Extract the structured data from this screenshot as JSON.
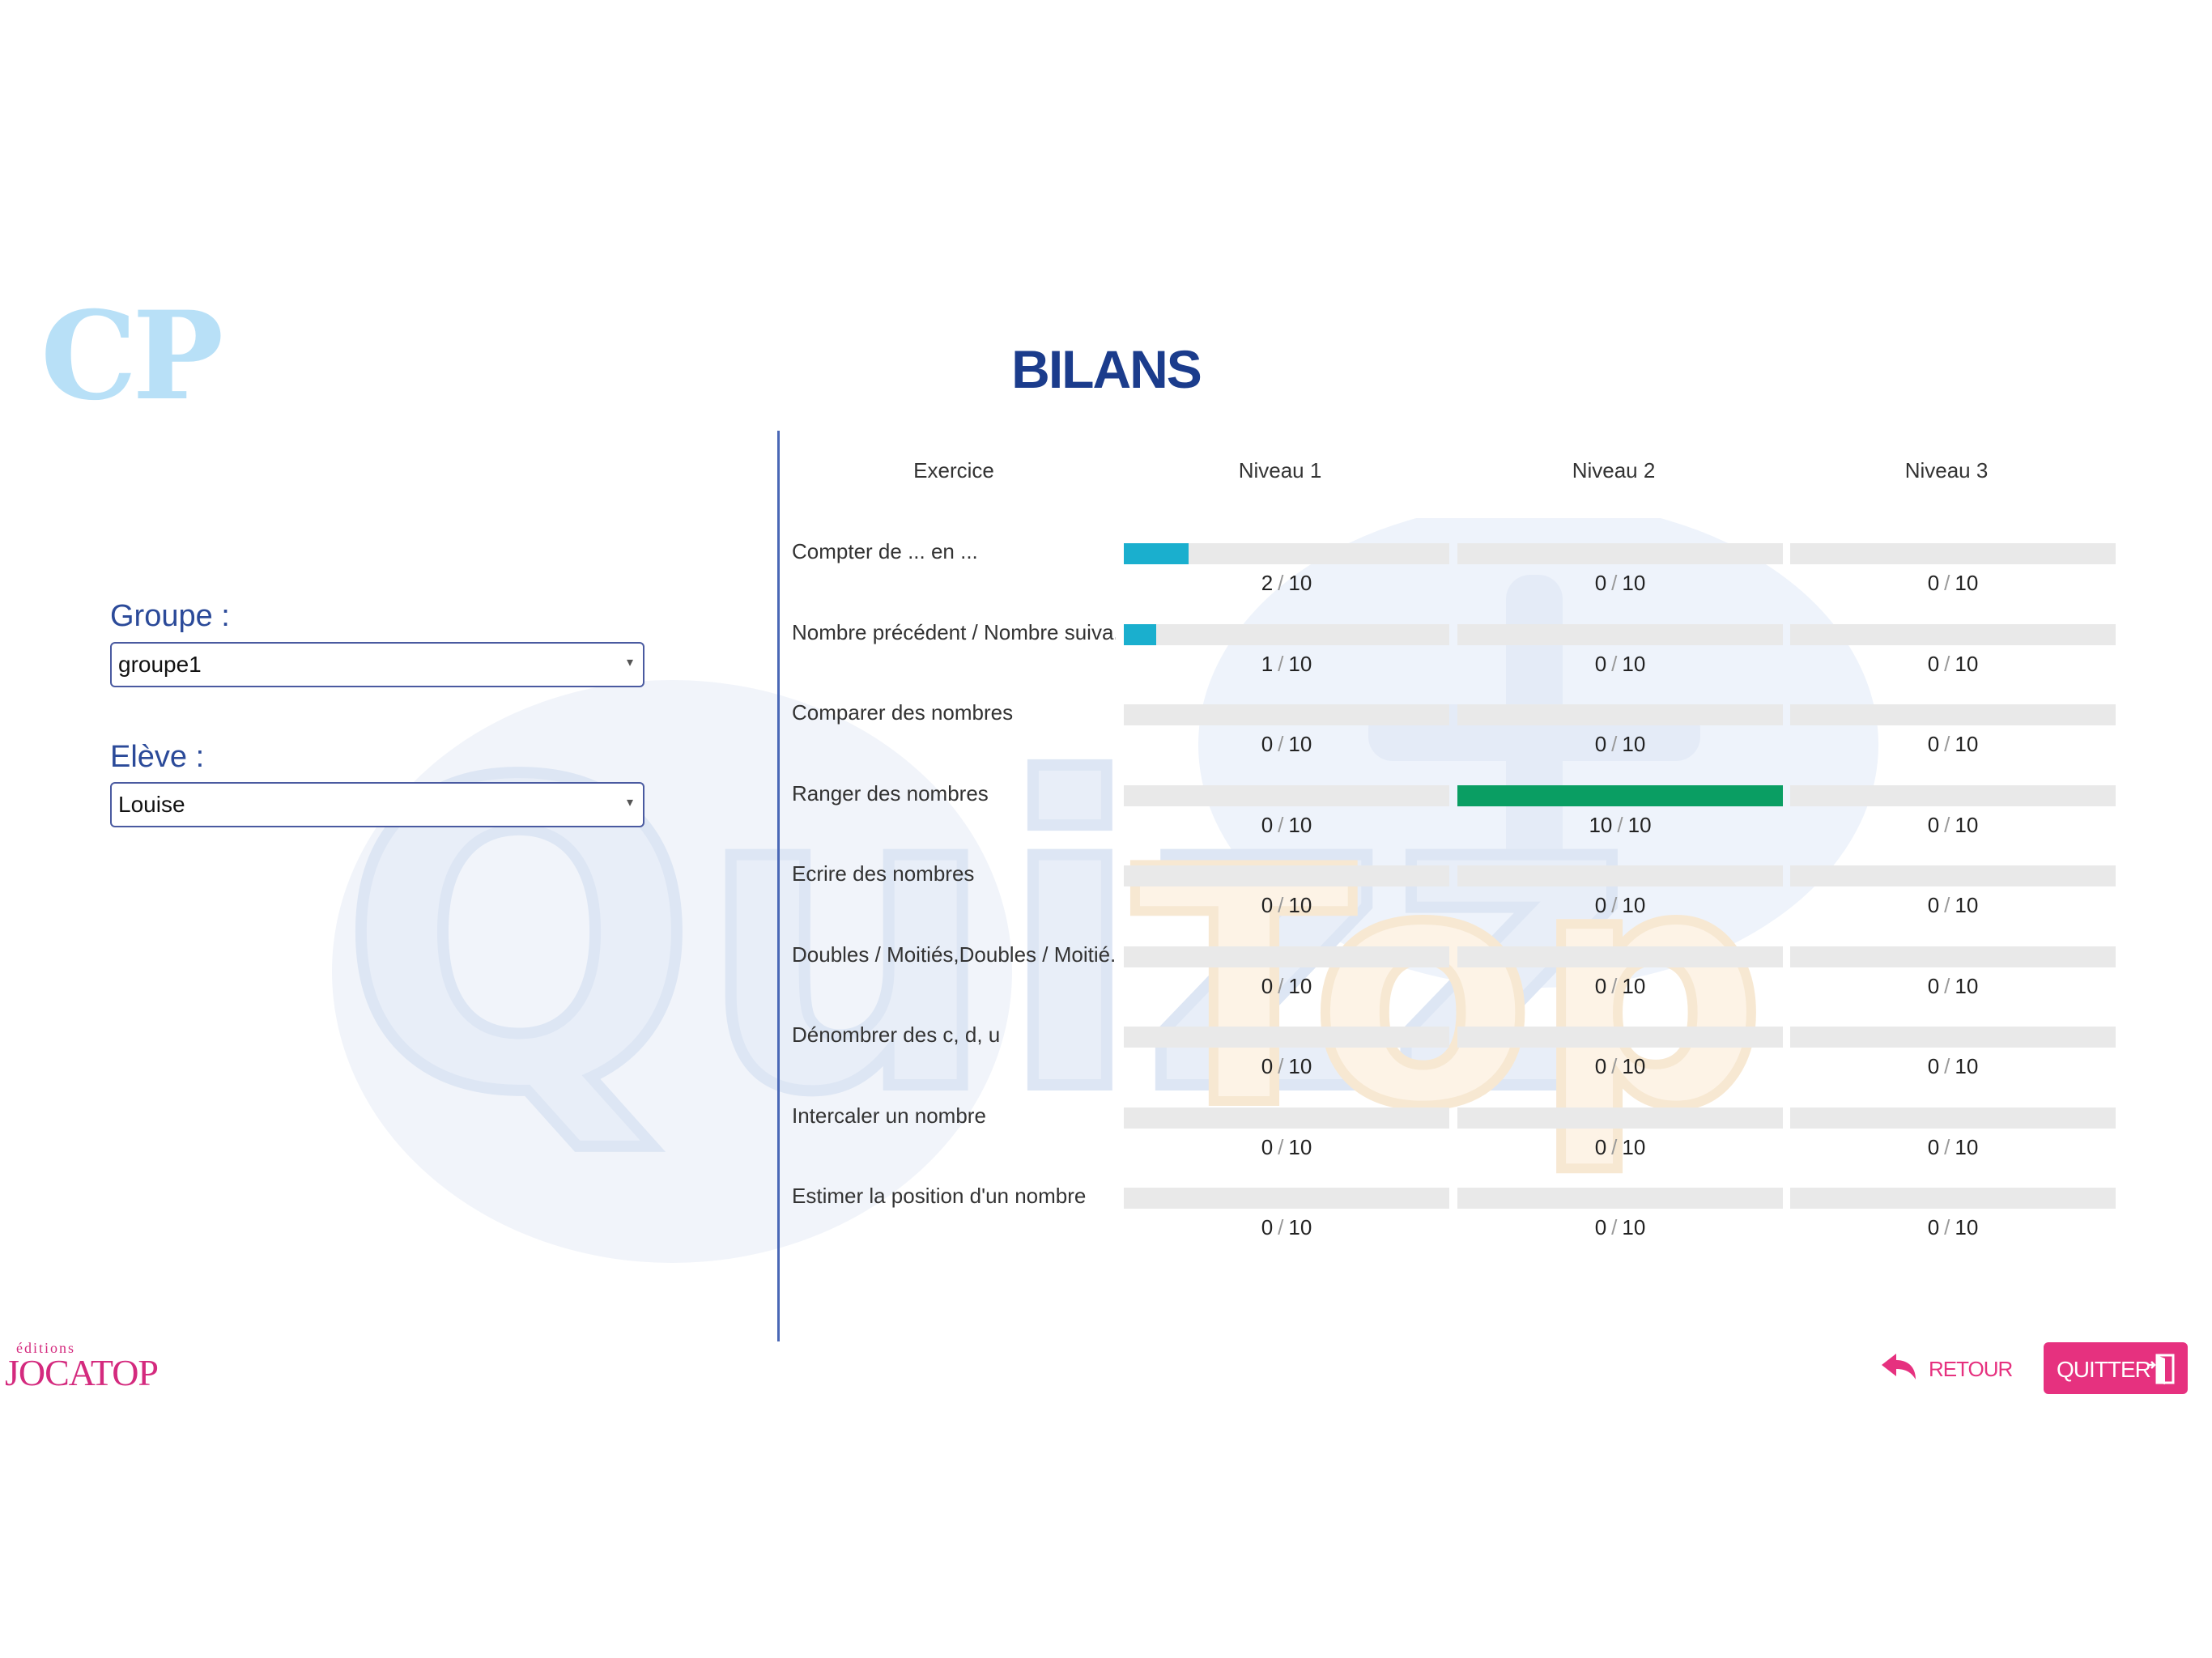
{
  "app": {
    "grade_logo": "CP",
    "brand_small": "éditions",
    "brand_main": "JOCATOP",
    "watermark": "QuizzTop"
  },
  "page": {
    "title": "BILANS"
  },
  "filters": {
    "group_label": "Groupe :",
    "group_value": "groupe1",
    "student_label": "Elève :",
    "student_value": "Louise"
  },
  "table": {
    "headers": [
      "Exercice",
      "Niveau 1",
      "Niveau 2",
      "Niveau 3"
    ],
    "rows": [
      {
        "exercise": "Compter de ... en ...",
        "levels": [
          {
            "score": "2",
            "total": "10",
            "progress": 0.2
          },
          {
            "score": "0",
            "total": "10",
            "progress": 0
          },
          {
            "score": "0",
            "total": "10",
            "progress": 0
          }
        ]
      },
      {
        "exercise": "Nombre précédent / Nombre suiva...",
        "levels": [
          {
            "score": "1",
            "total": "10",
            "progress": 0.1
          },
          {
            "score": "0",
            "total": "10",
            "progress": 0
          },
          {
            "score": "0",
            "total": "10",
            "progress": 0
          }
        ]
      },
      {
        "exercise": "Comparer des nombres",
        "levels": [
          {
            "score": "0",
            "total": "10",
            "progress": 0
          },
          {
            "score": "0",
            "total": "10",
            "progress": 0
          },
          {
            "score": "0",
            "total": "10",
            "progress": 0
          }
        ]
      },
      {
        "exercise": "Ranger des nombres",
        "levels": [
          {
            "score": "0",
            "total": "10",
            "progress": 0
          },
          {
            "score": "10",
            "total": "10",
            "progress": 1
          },
          {
            "score": "0",
            "total": "10",
            "progress": 0
          }
        ]
      },
      {
        "exercise": "Ecrire des nombres",
        "levels": [
          {
            "score": "0",
            "total": "10",
            "progress": 0
          },
          {
            "score": "0",
            "total": "10",
            "progress": 0
          },
          {
            "score": "0",
            "total": "10",
            "progress": 0
          }
        ]
      },
      {
        "exercise": "Doubles / Moitiés,Doubles / Moitié...",
        "levels": [
          {
            "score": "0",
            "total": "10",
            "progress": 0
          },
          {
            "score": "0",
            "total": "10",
            "progress": 0
          },
          {
            "score": "0",
            "total": "10",
            "progress": 0
          }
        ]
      },
      {
        "exercise": "Dénombrer des c, d, u",
        "levels": [
          {
            "score": "0",
            "total": "10",
            "progress": 0
          },
          {
            "score": "0",
            "total": "10",
            "progress": 0
          },
          {
            "score": "0",
            "total": "10",
            "progress": 0
          }
        ]
      },
      {
        "exercise": "Intercaler un nombre",
        "levels": [
          {
            "score": "0",
            "total": "10",
            "progress": 0
          },
          {
            "score": "0",
            "total": "10",
            "progress": 0
          },
          {
            "score": "0",
            "total": "10",
            "progress": 0
          }
        ]
      },
      {
        "exercise": "Estimer la position d'un nombre",
        "levels": [
          {
            "score": "0",
            "total": "10",
            "progress": 0
          },
          {
            "score": "0",
            "total": "10",
            "progress": 0
          },
          {
            "score": "0",
            "total": "10",
            "progress": 0
          }
        ]
      }
    ]
  },
  "colors": {
    "partial_progress": "#1aafce",
    "complete_progress": "#0a9e63",
    "accent_pink": "#e6317f",
    "title_blue": "#1b3c8c"
  },
  "footer": {
    "back_label": "RETOUR",
    "back_icon": "reply-arrow-icon",
    "quit_label": "QUITTER",
    "quit_icon": "exit-door-icon"
  }
}
